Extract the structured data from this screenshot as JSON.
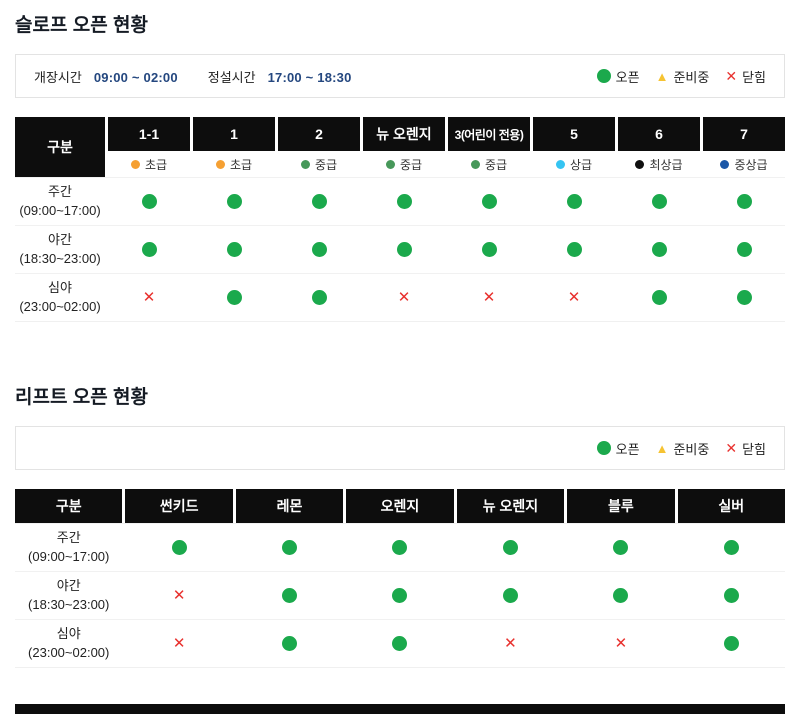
{
  "icons": {
    "closed_glyph": "✕",
    "ready_glyph": "▲"
  },
  "legend": {
    "open_label": "오픈",
    "ready_label": "준비중",
    "closed_label": "닫힘",
    "open_color": "#1ba94c",
    "ready_color": "#f6c332",
    "closed_color": "#e8312e"
  },
  "slope_section": {
    "title": "슬로프 오픈 현황",
    "info": {
      "open_time_label": "개장시간",
      "open_time_value": "09:00 ~ 02:00",
      "grooming_label": "정설시간",
      "grooming_value": "17:00 ~ 18:30"
    },
    "table": {
      "corner": "구분",
      "columns": [
        {
          "name": "1-1",
          "level": "초급",
          "level_color": "#f5a033"
        },
        {
          "name": "1",
          "level": "초급",
          "level_color": "#f5a033"
        },
        {
          "name": "2",
          "level": "중급",
          "level_color": "#47985a"
        },
        {
          "name": "뉴 오렌지",
          "level": "중급",
          "level_color": "#47985a"
        },
        {
          "name": "3(어린이 전용)",
          "level": "중급",
          "level_color": "#47985a"
        },
        {
          "name": "5",
          "level": "상급",
          "level_color": "#35c4f2"
        },
        {
          "name": "6",
          "level": "최상급",
          "level_color": "#101010"
        },
        {
          "name": "7",
          "level": "중상급",
          "level_color": "#1b57a7"
        }
      ],
      "rows": [
        {
          "name": "주간",
          "time": "(09:00~17:00)",
          "statuses": [
            "open",
            "open",
            "open",
            "open",
            "open",
            "open",
            "open",
            "open"
          ]
        },
        {
          "name": "야간",
          "time": "(18:30~23:00)",
          "statuses": [
            "open",
            "open",
            "open",
            "open",
            "open",
            "open",
            "open",
            "open"
          ]
        },
        {
          "name": "심야",
          "time": "(23:00~02:00)",
          "statuses": [
            "closed",
            "open",
            "open",
            "closed",
            "closed",
            "closed",
            "open",
            "open"
          ]
        }
      ]
    }
  },
  "lift_section": {
    "title": "리프트 오픈 현황",
    "table": {
      "corner": "구분",
      "columns": [
        {
          "name": "썬키드"
        },
        {
          "name": "레몬"
        },
        {
          "name": "오렌지"
        },
        {
          "name": "뉴 오렌지"
        },
        {
          "name": "블루"
        },
        {
          "name": "실버"
        }
      ],
      "rows": [
        {
          "name": "주간",
          "time": "(09:00~17:00)",
          "statuses": [
            "open",
            "open",
            "open",
            "open",
            "open",
            "open"
          ]
        },
        {
          "name": "야간",
          "time": "(18:30~23:00)",
          "statuses": [
            "closed",
            "open",
            "open",
            "open",
            "open",
            "open"
          ]
        },
        {
          "name": "심야",
          "time": "(23:00~02:00)",
          "statuses": [
            "closed",
            "open",
            "open",
            "closed",
            "closed",
            "open"
          ]
        }
      ]
    }
  }
}
